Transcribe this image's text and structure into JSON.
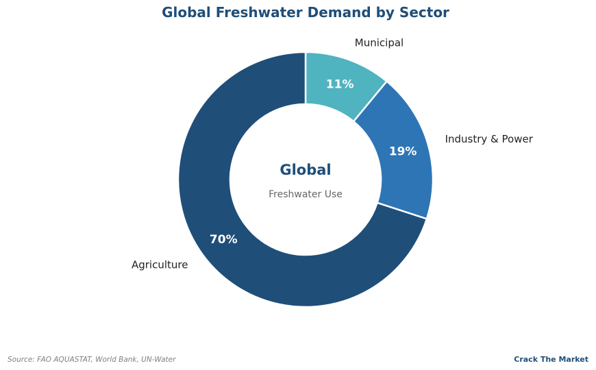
{
  "chart_data": {
    "type": "pie",
    "variant": "donut",
    "title": "Global Freshwater Demand by Sector",
    "center_title": "Global",
    "center_subtitle": "Freshwater Use",
    "categories": [
      "Municipal",
      "Industry & Power",
      "Agriculture"
    ],
    "values": [
      11,
      19,
      70
    ],
    "value_labels": [
      "11%",
      "19%",
      "70%"
    ],
    "colors": [
      "#4fb3c0",
      "#2e75b6",
      "#1f4e79"
    ],
    "start": "12 o'clock",
    "direction": "clockwise"
  },
  "footer": {
    "source": "Source: FAO AQUASTAT, World Bank, UN-Water",
    "brand": "Crack The Market"
  },
  "colors": {
    "title": "#1f4e79",
    "label_text": "#222222",
    "center_subtitle": "#666666",
    "source_text": "#7f7f7f"
  }
}
